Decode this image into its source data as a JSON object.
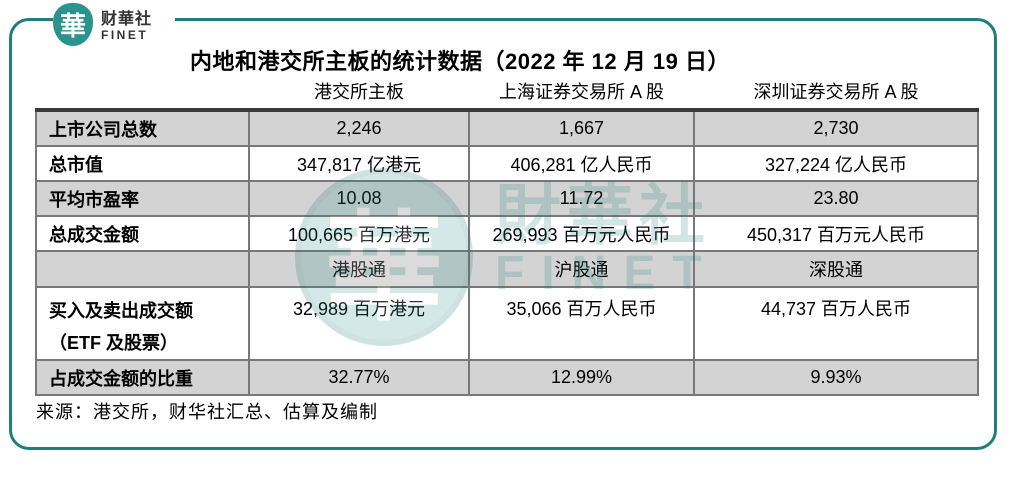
{
  "brand": {
    "logo_char": "華",
    "name": "财華社",
    "name_en": "FINET"
  },
  "title": "内地和港交所主板的统计数据（2022 年 12 月 19 日）",
  "table": {
    "column_headers": [
      "",
      "港交所主板",
      "上海证券交易所 A 股",
      "深圳证券交易所 A 股"
    ],
    "rows": [
      {
        "label": "上市公司总数",
        "values": [
          "2,246",
          "1,667",
          "2,730"
        ]
      },
      {
        "label": "总市值",
        "values": [
          "347,817 亿港元",
          "406,281 亿人民币",
          "327,224 亿人民币"
        ]
      },
      {
        "label": "平均市盈率",
        "values": [
          "10.08",
          "11.72",
          "23.80"
        ]
      },
      {
        "label": "总成交金额",
        "values": [
          "100,665 百万港元",
          "269,993 百万元人民币",
          "450,317 百万元人民币"
        ]
      },
      {
        "label": "",
        "values": [
          "港股通",
          "沪股通",
          "深股通"
        ]
      },
      {
        "label_lines": [
          "买入及卖出成交额",
          "（ETF 及股票）"
        ],
        "values": [
          "32,989 百万港元",
          "35,066 百万人民币",
          "44,737 百万人民币"
        ]
      },
      {
        "label": "占成交金额的比重",
        "values": [
          "32.77%",
          "12.99%",
          "9.93%"
        ]
      }
    ]
  },
  "source": "来源：港交所，财华社汇总、估算及编制",
  "watermark": {
    "logo_char": "華",
    "name": "財華社",
    "name_en": "FINET"
  },
  "colors": {
    "accent_teal": "#1E807E",
    "logo_teal": "#2B938E",
    "row_gray": "#D3D3D3",
    "grid_line": "#787878",
    "table_top_border": "#3A3A3A",
    "text": "#000000"
  }
}
